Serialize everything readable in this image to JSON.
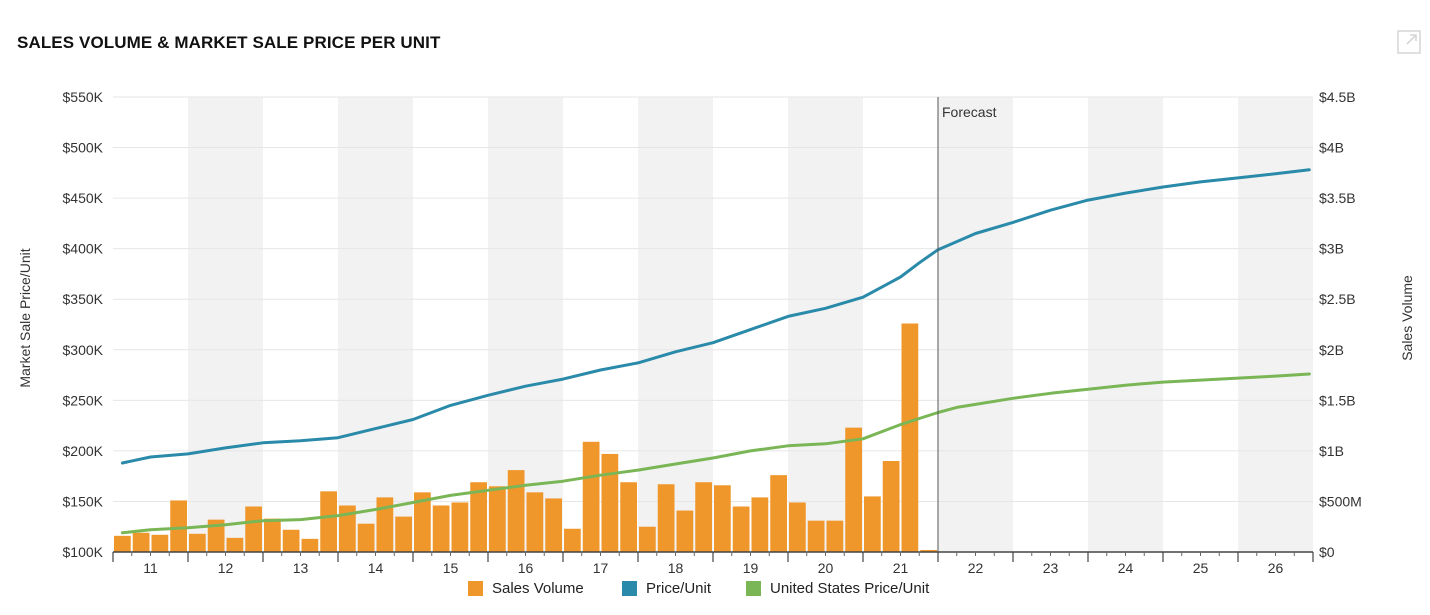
{
  "header": {
    "title": "SALES VOLUME & MARKET SALE PRICE PER UNIT",
    "expand_icon": "external-link-icon"
  },
  "colors": {
    "sales_volume": "#f0972c",
    "price_unit": "#2a8aa9",
    "us_price_unit": "#7ab656",
    "band": "#f2f2f2",
    "grid": "#e6e6e6",
    "forecast_line": "#555555"
  },
  "chart_data": {
    "type": "bar",
    "title": "SALES VOLUME & MARKET SALE PRICE PER UNIT",
    "x_tick_labels": [
      "11",
      "12",
      "13",
      "14",
      "15",
      "16",
      "17",
      "18",
      "19",
      "20",
      "21",
      "22",
      "23",
      "24",
      "25",
      "26"
    ],
    "x_range": [
      2010.5,
      2026.5
    ],
    "forecast_start": 2021.5,
    "forecast_label": "Forecast",
    "y_left": {
      "label": "Market Sale Price/Unit",
      "range": [
        100000,
        550000
      ],
      "tick_labels": [
        "$100K",
        "$150K",
        "$200K",
        "$250K",
        "$300K",
        "$350K",
        "$400K",
        "$450K",
        "$500K",
        "$550K"
      ]
    },
    "y_right": {
      "label": "Sales Volume",
      "range": [
        0,
        4500000000
      ],
      "tick_labels": [
        "$0",
        "$500M",
        "$1B",
        "$1.5B",
        "$2B",
        "$2.5B",
        "$3B",
        "$3.5B",
        "$4B",
        "$4.5B"
      ]
    },
    "legend_position": "bottom",
    "legend": [
      "Sales Volume",
      "Price/Unit",
      "United States Price/Unit"
    ],
    "sales_volume": {
      "axis": "right",
      "x": [
        2010.625,
        2010.875,
        2011.125,
        2011.375,
        2011.625,
        2011.875,
        2012.125,
        2012.375,
        2012.625,
        2012.875,
        2013.125,
        2013.375,
        2013.625,
        2013.875,
        2014.125,
        2014.375,
        2014.625,
        2014.875,
        2015.125,
        2015.375,
        2015.625,
        2015.875,
        2016.125,
        2016.375,
        2016.625,
        2016.875,
        2017.125,
        2017.375,
        2017.625,
        2017.875,
        2018.125,
        2018.375,
        2018.625,
        2018.875,
        2019.125,
        2019.375,
        2019.625,
        2019.875,
        2020.125,
        2020.375,
        2020.625,
        2020.875,
        2021.125,
        2021.375
      ],
      "values": [
        160000000,
        190000000,
        170000000,
        510000000,
        180000000,
        320000000,
        140000000,
        450000000,
        330000000,
        220000000,
        130000000,
        600000000,
        460000000,
        280000000,
        540000000,
        350000000,
        590000000,
        460000000,
        490000000,
        690000000,
        650000000,
        810000000,
        590000000,
        530000000,
        230000000,
        1090000000,
        970000000,
        690000000,
        250000000,
        670000000,
        410000000,
        690000000,
        660000000,
        450000000,
        540000000,
        760000000,
        490000000,
        310000000,
        310000000,
        1230000000,
        550000000,
        900000000,
        2260000000,
        20000000
      ]
    },
    "series": [
      {
        "name": "Price/Unit",
        "axis": "left",
        "x": [
          2010.625,
          2011.0,
          2011.5,
          2012.0,
          2012.5,
          2013.0,
          2013.5,
          2014.0,
          2014.5,
          2015.0,
          2015.5,
          2016.0,
          2016.5,
          2017.0,
          2017.5,
          2018.0,
          2018.5,
          2019.0,
          2019.5,
          2020.0,
          2020.5,
          2021.0,
          2021.25,
          2021.5,
          2021.75,
          2022.0,
          2022.5,
          2023.0,
          2023.5,
          2024.0,
          2024.5,
          2025.0,
          2025.5,
          2026.0,
          2026.45
        ],
        "values": [
          188000,
          194000,
          197000,
          203000,
          208000,
          210000,
          213000,
          222000,
          231000,
          245000,
          255000,
          264000,
          271000,
          280000,
          287000,
          298000,
          307000,
          320000,
          333000,
          341000,
          352000,
          372000,
          386000,
          399000,
          407000,
          415000,
          426000,
          438000,
          448000,
          455000,
          461000,
          466000,
          470000,
          474000,
          478000
        ]
      },
      {
        "name": "United States Price/Unit",
        "axis": "left",
        "x": [
          2010.625,
          2011.0,
          2011.5,
          2012.0,
          2012.5,
          2013.0,
          2013.5,
          2014.0,
          2014.5,
          2015.0,
          2015.5,
          2016.0,
          2016.5,
          2017.0,
          2017.5,
          2018.0,
          2018.5,
          2019.0,
          2019.5,
          2020.0,
          2020.5,
          2021.0,
          2021.25,
          2021.5,
          2021.75,
          2022.0,
          2022.5,
          2023.0,
          2023.5,
          2024.0,
          2024.5,
          2025.0,
          2025.5,
          2026.0,
          2026.45
        ],
        "values": [
          119000,
          122000,
          124000,
          127000,
          131000,
          132000,
          136000,
          142000,
          149000,
          156000,
          161000,
          166000,
          170000,
          176000,
          181000,
          187000,
          193000,
          200000,
          205000,
          207000,
          212000,
          226000,
          232000,
          238000,
          243000,
          246000,
          252000,
          257000,
          261000,
          265000,
          268000,
          270000,
          272000,
          274000,
          276000
        ]
      }
    ]
  }
}
